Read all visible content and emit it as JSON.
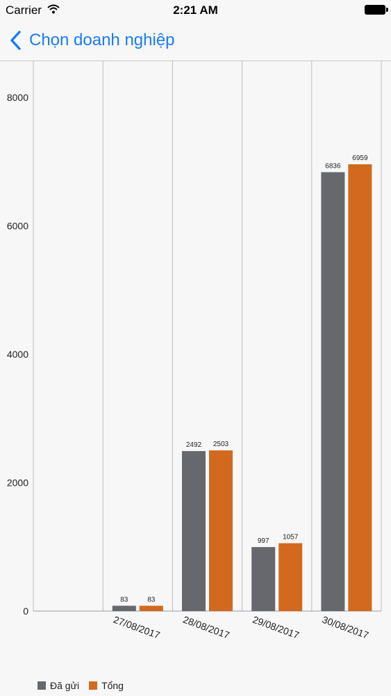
{
  "status_bar": {
    "carrier": "Carrier",
    "time": "2:21 AM",
    "icons": [
      "wifi-icon",
      "battery-icon"
    ]
  },
  "nav": {
    "back_icon": "chevron-left-icon",
    "back_label": "Chọn doanh nghiệp",
    "accent_color": "#1a7cf4"
  },
  "chart_data": {
    "type": "bar",
    "categories": [
      "27/08/2017",
      "28/08/2017",
      "29/08/2017",
      "30/08/2017"
    ],
    "series": [
      {
        "name": "Đã gửi",
        "color": "#67686d",
        "values": [
          83,
          2492,
          997,
          6836
        ]
      },
      {
        "name": "Tổng",
        "color": "#d2691e",
        "values": [
          83,
          2503,
          1057,
          6959
        ]
      }
    ],
    "ylim": [
      0,
      8000
    ],
    "yticks": [
      0,
      2000,
      4000,
      6000,
      8000
    ],
    "xlabel": "",
    "ylabel": "",
    "grid": "vertical",
    "legend_position": "bottom-left",
    "data_labels": true
  }
}
